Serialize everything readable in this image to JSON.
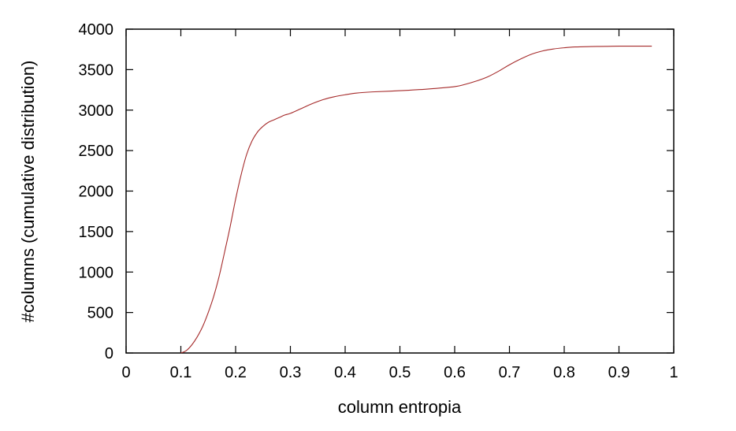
{
  "chart_data": {
    "type": "line",
    "title": "",
    "xlabel": "column entropia",
    "ylabel": "#columns (cumulative distribution)",
    "xlim": [
      0,
      1
    ],
    "ylim": [
      0,
      4000
    ],
    "x_ticks": [
      "0",
      "0.1",
      "0.2",
      "0.3",
      "0.4",
      "0.5",
      "0.6",
      "0.7",
      "0.8",
      "0.9",
      "1"
    ],
    "y_ticks": [
      "0",
      "500",
      "1000",
      "1500",
      "2000",
      "2500",
      "3000",
      "3500",
      "4000"
    ],
    "grid": false,
    "legend": "none",
    "series": [
      {
        "color": "#a52a2a",
        "x": [
          0.1,
          0.11,
          0.12,
          0.13,
          0.14,
          0.15,
          0.16,
          0.17,
          0.18,
          0.19,
          0.2,
          0.21,
          0.22,
          0.23,
          0.24,
          0.25,
          0.26,
          0.27,
          0.28,
          0.29,
          0.3,
          0.32,
          0.34,
          0.36,
          0.38,
          0.4,
          0.42,
          0.45,
          0.5,
          0.55,
          0.6,
          0.62,
          0.64,
          0.66,
          0.68,
          0.7,
          0.72,
          0.74,
          0.76,
          0.78,
          0.8,
          0.82,
          0.85,
          0.88,
          0.9,
          0.93,
          0.96
        ],
        "y": [
          0,
          30,
          100,
          200,
          330,
          500,
          700,
          950,
          1250,
          1560,
          1900,
          2200,
          2450,
          2620,
          2730,
          2800,
          2850,
          2880,
          2910,
          2940,
          2960,
          3020,
          3080,
          3130,
          3165,
          3190,
          3210,
          3225,
          3240,
          3260,
          3290,
          3320,
          3360,
          3410,
          3480,
          3560,
          3630,
          3690,
          3730,
          3755,
          3770,
          3780,
          3785,
          3788,
          3790,
          3790,
          3790
        ]
      }
    ]
  }
}
